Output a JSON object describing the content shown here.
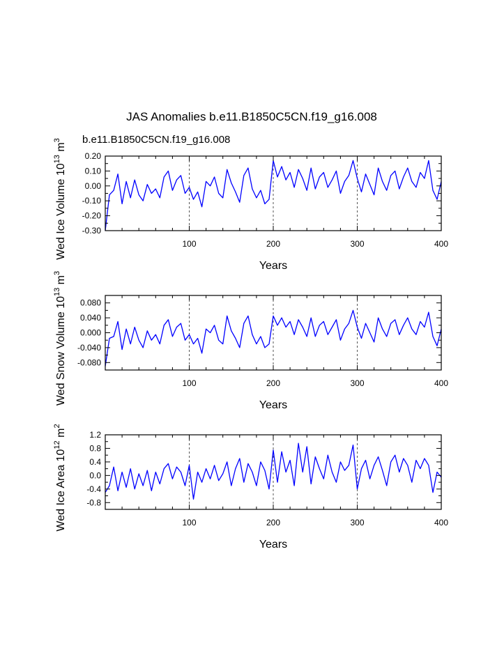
{
  "figure": {
    "title": "JAS Anomalies b.e11.B1850C5CN.f19_g16.008",
    "legend_label": "b.e11.B1850C5CN.f19_g16.008",
    "line_color": "#0000ff",
    "axis_color": "#000000",
    "reference_line_color": "#555555"
  },
  "chart_data": [
    {
      "type": "line",
      "title": "",
      "xlabel": "Years",
      "ylabel": "Wed Ice Volume 10",
      "ylabel_exp": "13",
      "ylabel_unit": "m",
      "ylabel_unit_exp": "3",
      "xlim": [
        0,
        400
      ],
      "ylim": [
        -0.3,
        0.2
      ],
      "xticks": [
        100,
        200,
        300,
        400
      ],
      "xtick_labels": [
        "100",
        "200",
        "300",
        "400"
      ],
      "yticks": [
        -0.3,
        -0.2,
        -0.1,
        0.0,
        0.1,
        0.2
      ],
      "ytick_labels": [
        "-0.30",
        "-0.20",
        "-0.10",
        "0.00",
        "0.10",
        "0.20"
      ],
      "reference_x": [
        100,
        200,
        300
      ],
      "series": [
        {
          "name": "b.e11.B1850C5CN.f19_g16.008",
          "x": [
            0,
            5,
            10,
            15,
            20,
            25,
            30,
            35,
            40,
            45,
            50,
            55,
            60,
            65,
            70,
            75,
            80,
            85,
            90,
            95,
            100,
            105,
            110,
            115,
            120,
            125,
            130,
            135,
            140,
            145,
            150,
            155,
            160,
            165,
            170,
            175,
            180,
            185,
            190,
            195,
            200,
            205,
            210,
            215,
            220,
            225,
            230,
            235,
            240,
            245,
            250,
            255,
            260,
            265,
            270,
            275,
            280,
            285,
            290,
            295,
            300,
            305,
            310,
            315,
            320,
            325,
            330,
            335,
            340,
            345,
            350,
            355,
            360,
            365,
            370,
            375,
            380,
            385,
            390,
            395,
            400
          ],
          "values": [
            -0.3,
            -0.06,
            -0.03,
            0.08,
            -0.12,
            0.03,
            -0.08,
            0.04,
            -0.06,
            -0.1,
            0.01,
            -0.05,
            -0.02,
            -0.08,
            0.06,
            0.1,
            -0.03,
            0.04,
            0.07,
            -0.05,
            -0.01,
            -0.09,
            -0.04,
            -0.14,
            0.03,
            0.0,
            0.06,
            -0.05,
            -0.08,
            0.11,
            0.02,
            -0.04,
            -0.11,
            0.07,
            0.12,
            -0.02,
            -0.08,
            -0.03,
            -0.12,
            -0.09,
            0.17,
            0.06,
            0.13,
            0.04,
            0.09,
            -0.01,
            0.11,
            0.05,
            -0.03,
            0.12,
            -0.02,
            0.06,
            0.09,
            -0.01,
            0.04,
            0.1,
            -0.05,
            0.03,
            0.07,
            0.17,
            0.05,
            -0.04,
            0.08,
            0.01,
            -0.06,
            0.12,
            0.03,
            -0.03,
            0.07,
            0.1,
            -0.02,
            0.06,
            0.12,
            0.03,
            -0.01,
            0.09,
            0.05,
            0.17,
            -0.03,
            -0.09,
            0.03
          ]
        }
      ]
    },
    {
      "type": "line",
      "title": "",
      "xlabel": "Years",
      "ylabel": "Wed Snow Volume 10",
      "ylabel_exp": "13",
      "ylabel_unit": "m",
      "ylabel_unit_exp": "3",
      "xlim": [
        0,
        400
      ],
      "ylim": [
        -0.1,
        0.1
      ],
      "xticks": [
        100,
        200,
        300,
        400
      ],
      "xtick_labels": [
        "100",
        "200",
        "300",
        "400"
      ],
      "yticks": [
        -0.08,
        -0.04,
        0.0,
        0.04,
        0.08
      ],
      "ytick_labels": [
        "-0.080",
        "-0.040",
        "0.000",
        "0.040",
        "0.080"
      ],
      "reference_x": [
        100,
        200,
        300
      ],
      "series": [
        {
          "name": "b.e11.B1850C5CN.f19_g16.008",
          "x": [
            0,
            5,
            10,
            15,
            20,
            25,
            30,
            35,
            40,
            45,
            50,
            55,
            60,
            65,
            70,
            75,
            80,
            85,
            90,
            95,
            100,
            105,
            110,
            115,
            120,
            125,
            130,
            135,
            140,
            145,
            150,
            155,
            160,
            165,
            170,
            175,
            180,
            185,
            190,
            195,
            200,
            205,
            210,
            215,
            220,
            225,
            230,
            235,
            240,
            245,
            250,
            255,
            260,
            265,
            270,
            275,
            280,
            285,
            290,
            295,
            300,
            305,
            310,
            315,
            320,
            325,
            330,
            335,
            340,
            345,
            350,
            355,
            360,
            365,
            370,
            375,
            380,
            385,
            390,
            395,
            400
          ],
          "values": [
            -0.09,
            -0.015,
            -0.01,
            0.03,
            -0.045,
            0.01,
            -0.03,
            0.015,
            -0.02,
            -0.04,
            0.005,
            -0.02,
            -0.005,
            -0.03,
            0.02,
            0.035,
            -0.01,
            0.015,
            0.025,
            -0.02,
            -0.005,
            -0.03,
            -0.015,
            -0.055,
            0.01,
            0.0,
            0.02,
            -0.02,
            -0.03,
            0.045,
            0.005,
            -0.015,
            -0.04,
            0.025,
            0.045,
            -0.005,
            -0.03,
            -0.01,
            -0.04,
            -0.03,
            0.045,
            0.02,
            0.04,
            0.015,
            0.03,
            -0.005,
            0.035,
            0.015,
            -0.01,
            0.04,
            -0.01,
            0.02,
            0.03,
            -0.005,
            0.015,
            0.035,
            -0.02,
            0.01,
            0.025,
            0.06,
            0.015,
            -0.015,
            0.025,
            0.0,
            -0.025,
            0.04,
            0.01,
            -0.01,
            0.025,
            0.035,
            -0.005,
            0.02,
            0.04,
            0.01,
            -0.005,
            0.03,
            0.015,
            0.055,
            -0.01,
            -0.035,
            0.01
          ]
        }
      ]
    },
    {
      "type": "line",
      "title": "",
      "xlabel": "Years",
      "ylabel": "Wed Ice Area 10",
      "ylabel_exp": "12",
      "ylabel_unit": "m",
      "ylabel_unit_exp": "2",
      "xlim": [
        0,
        400
      ],
      "ylim": [
        -1.0,
        1.2
      ],
      "xticks": [
        100,
        200,
        300,
        400
      ],
      "xtick_labels": [
        "100",
        "200",
        "300",
        "400"
      ],
      "yticks": [
        -0.8,
        -0.4,
        0.0,
        0.4,
        0.8,
        1.2
      ],
      "ytick_labels": [
        "-0.8",
        "-0.4",
        "0.0",
        "0.4",
        "0.8",
        "1.2"
      ],
      "reference_x": [
        100,
        200,
        300
      ],
      "series": [
        {
          "name": "b.e11.B1850C5CN.f19_g16.008",
          "x": [
            0,
            5,
            10,
            15,
            20,
            25,
            30,
            35,
            40,
            45,
            50,
            55,
            60,
            65,
            70,
            75,
            80,
            85,
            90,
            95,
            100,
            105,
            110,
            115,
            120,
            125,
            130,
            135,
            140,
            145,
            150,
            155,
            160,
            165,
            170,
            175,
            180,
            185,
            190,
            195,
            200,
            205,
            210,
            215,
            220,
            225,
            230,
            235,
            240,
            245,
            250,
            255,
            260,
            265,
            270,
            275,
            280,
            285,
            290,
            295,
            300,
            305,
            310,
            315,
            320,
            325,
            330,
            335,
            340,
            345,
            350,
            355,
            360,
            365,
            370,
            375,
            380,
            385,
            390,
            395,
            400
          ],
          "values": [
            -0.5,
            -0.3,
            0.25,
            -0.45,
            0.1,
            -0.35,
            0.2,
            -0.4,
            0.05,
            -0.3,
            0.15,
            -0.45,
            0.1,
            -0.25,
            0.2,
            0.35,
            -0.1,
            0.25,
            0.1,
            -0.3,
            0.3,
            -0.7,
            0.1,
            -0.2,
            0.2,
            -0.1,
            0.3,
            -0.15,
            0.05,
            0.4,
            -0.3,
            0.2,
            0.5,
            -0.2,
            0.35,
            0.1,
            -0.3,
            0.4,
            0.15,
            -0.4,
            0.75,
            -0.2,
            0.7,
            0.1,
            0.45,
            -0.3,
            0.95,
            0.1,
            0.85,
            -0.25,
            0.55,
            0.2,
            -0.1,
            0.6,
            0.1,
            -0.2,
            0.4,
            0.15,
            0.3,
            0.9,
            -0.4,
            0.2,
            0.45,
            -0.1,
            0.3,
            0.55,
            0.15,
            -0.3,
            0.4,
            0.6,
            0.1,
            0.5,
            0.3,
            -0.2,
            0.45,
            0.2,
            0.5,
            0.3,
            -0.5,
            0.1,
            -0.05
          ]
        }
      ]
    }
  ]
}
